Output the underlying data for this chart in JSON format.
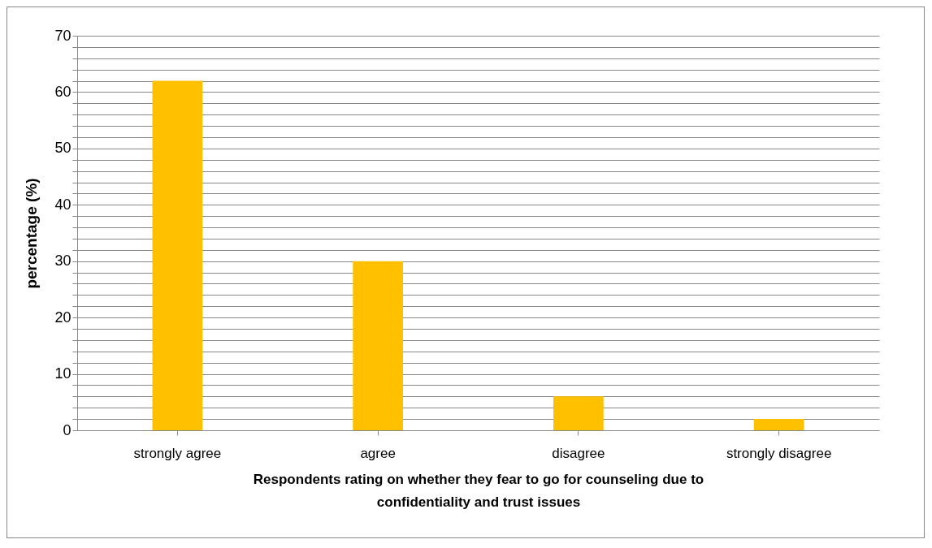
{
  "chart_data": {
    "type": "bar",
    "xlabel": "Respondents rating on whether they fear to go for counseling due to confidentiality and trust issues",
    "ylabel": "percentage (%)",
    "categories": [
      "strongly agree",
      "agree",
      "disagree",
      "strongly disagree"
    ],
    "values": [
      62,
      30,
      6,
      2
    ],
    "color": "#ffc000",
    "ylim": [
      0,
      70
    ],
    "yticks": [
      0,
      {
        "value": 2,
        "label": null
      },
      {
        "value": 4,
        "label": null
      },
      {
        "value": 6,
        "label": null
      },
      {
        "value": 8,
        "label": null
      },
      10,
      {
        "value": 12,
        "label": null
      },
      {
        "value": 14,
        "label": null
      },
      {
        "value": 16,
        "label": null
      },
      {
        "value": 18,
        "label": null
      },
      20,
      {
        "value": 22,
        "label": null
      },
      {
        "value": 24,
        "label": null
      },
      {
        "value": 26,
        "label": null
      },
      {
        "value": 28,
        "label": null
      },
      30,
      {
        "value": 32,
        "label": null
      },
      {
        "value": 34,
        "label": null
      },
      {
        "value": 36,
        "label": null
      },
      {
        "value": 38,
        "label": null
      },
      40,
      {
        "value": 42,
        "label": null
      },
      {
        "value": 44,
        "label": null
      },
      {
        "value": 46,
        "label": null
      },
      {
        "value": 48,
        "label": null
      },
      50,
      {
        "value": 52,
        "label": null
      },
      {
        "value": 54,
        "label": null
      },
      {
        "value": 56,
        "label": null
      },
      {
        "value": 58,
        "label": null
      },
      60,
      {
        "value": 62,
        "label": null
      },
      {
        "value": 64,
        "label": null
      },
      {
        "value": 66,
        "label": null
      },
      {
        "value": 68,
        "label": null
      },
      70
    ],
    "grid": true
  }
}
